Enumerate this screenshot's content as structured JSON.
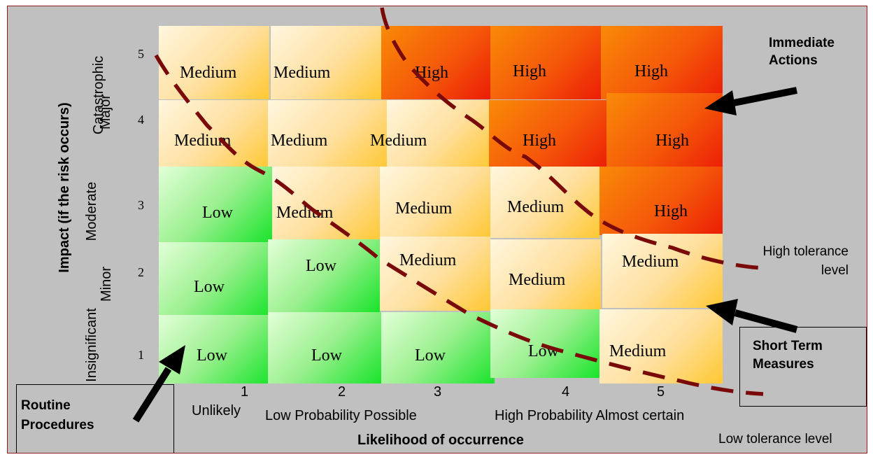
{
  "y_ticks": [
    "1",
    "2",
    "3",
    "4",
    "5"
  ],
  "x_ticks": [
    "1",
    "2",
    "3",
    "4",
    "5"
  ],
  "x_categories": [
    "Unlikely",
    "Low Probability Possible",
    "High Probability Almost certain"
  ],
  "x_axis_label": "Likelihood of occurrence",
  "y_axis_label": "Impact (if the risk occurs)",
  "y_categories": {
    "insignificant": "Insignificant",
    "minor": "Minor",
    "moderate": "Moderate",
    "major": "Major",
    "catastrophic": "Catastrophic"
  },
  "matrix": {
    "row5": [
      "Medium",
      "Medium",
      "High",
      "High",
      "High"
    ],
    "row4": [
      "Medium",
      "Medium",
      "Medium",
      "High",
      "High"
    ],
    "row3": [
      "Low",
      "Medium",
      "Medium",
      "Medium",
      "High"
    ],
    "row2": [
      "Low",
      "Low",
      "Medium",
      "Medium",
      "Medium"
    ],
    "row1": [
      "Low",
      "Low",
      "Low",
      "Low",
      "Medium"
    ]
  },
  "annotations": {
    "immediate_actions": "Immediate Actions",
    "short_term_measures": "Short Term Measures",
    "routine_procedures": "Routine Procedures",
    "high_tolerance": "High tolerance level",
    "low_tolerance": "Low tolerance level"
  },
  "colors": {
    "background": "#c0c0c0",
    "border": "#8a1c1c",
    "tolerance_line": "#7a0a0a",
    "low": "#18e42a",
    "medium": "#ffc832",
    "high": "#ec1d06"
  }
}
